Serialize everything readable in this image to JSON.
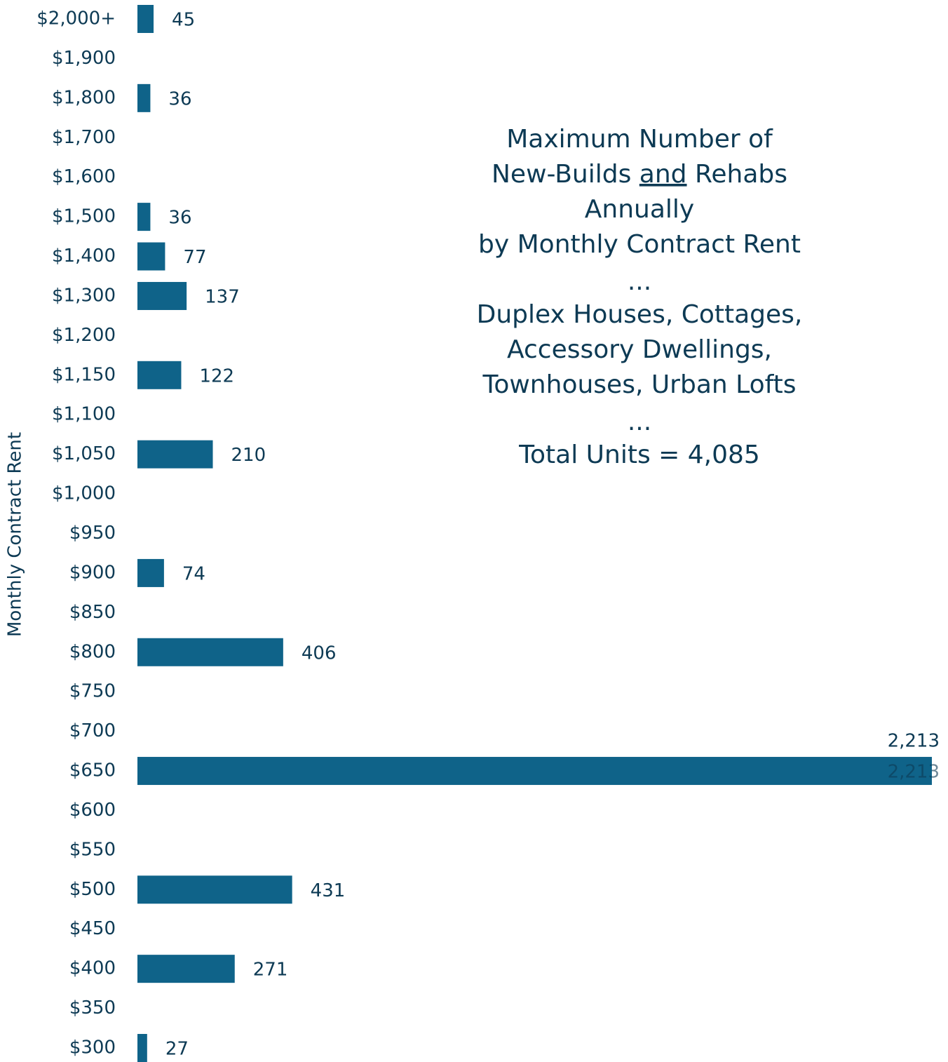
{
  "chart_data": {
    "type": "bar",
    "orientation": "horizontal",
    "title": [
      [
        "Maximum Number of"
      ],
      [
        "New-Builds",
        "and",
        "Rehabs"
      ],
      [
        "Annually"
      ],
      [
        "by Monthly Contract Rent"
      ],
      [
        "..."
      ],
      [
        "Duplex Houses, Cottages,"
      ],
      [
        "Accessory Dwellings,"
      ],
      [
        "Townhouses, Urban Lofts"
      ],
      [
        "..."
      ],
      [
        "Total Units = 4,085"
      ]
    ],
    "ylabel": "Monthly Contract Rent",
    "categories": [
      "$2,000+",
      "$1,900",
      "$1,800",
      "$1,700",
      "$1,600",
      "$1,500",
      "$1,400",
      "$1,300",
      "$1,200",
      "$1,150",
      "$1,100",
      "$1,050",
      "$1,000",
      "$950",
      "$900",
      "$850",
      "$800",
      "$750",
      "$700",
      "$650",
      "$600",
      "$550",
      "$500",
      "$450",
      "$400",
      "$350",
      "$300"
    ],
    "values": [
      45,
      null,
      36,
      null,
      null,
      36,
      77,
      137,
      null,
      122,
      null,
      210,
      null,
      null,
      74,
      null,
      406,
      null,
      null,
      2213,
      null,
      null,
      431,
      null,
      271,
      null,
      27
    ],
    "value_labels": [
      null,
      null,
      null,
      null,
      null,
      null,
      null,
      null,
      null,
      null,
      null,
      null,
      null,
      null,
      null,
      null,
      null,
      null,
      null,
      "2,213",
      null,
      null,
      null,
      null,
      null,
      null,
      null
    ],
    "color": "#0f6389"
  }
}
